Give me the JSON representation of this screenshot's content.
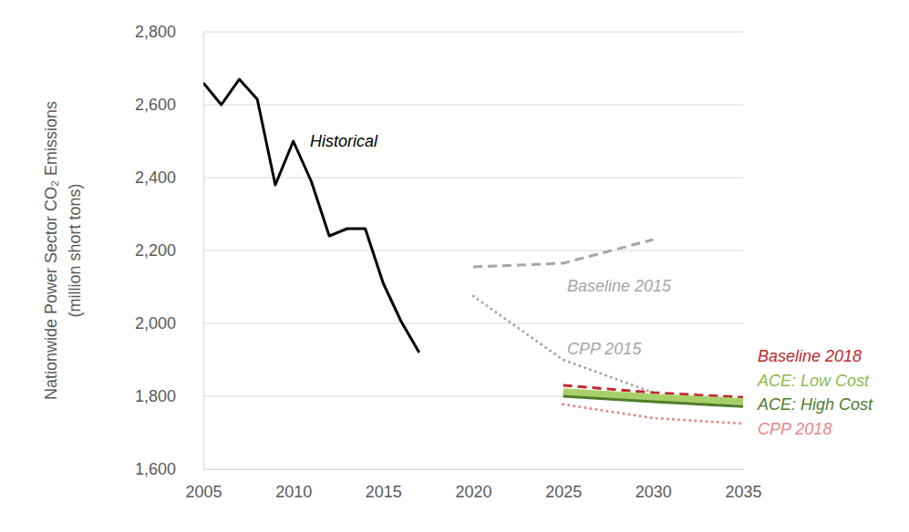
{
  "chart_data": {
    "type": "line",
    "y_label": [
      "Nationwide Power Sector CO₂ Emissions",
      "(million short tons)"
    ],
    "xlim": [
      2005,
      2035
    ],
    "xticks": [
      2005,
      2010,
      2015,
      2020,
      2025,
      2030,
      2035
    ],
    "ylim": [
      1600,
      2800
    ],
    "yticks": [
      {
        "value": 1600,
        "label": "1,600"
      },
      {
        "value": 1800,
        "label": "1,800"
      },
      {
        "value": 2000,
        "label": "2,000"
      },
      {
        "value": 2200,
        "label": "2,200"
      },
      {
        "value": 2400,
        "label": "2,400"
      },
      {
        "value": 2600,
        "label": "2,600"
      },
      {
        "value": 2800,
        "label": "2,800"
      }
    ],
    "grid": true,
    "series": [
      {
        "name": "Historical",
        "color": "#000000",
        "line_style": "solid",
        "x": [
          2005,
          2006,
          2007,
          2008,
          2009,
          2010,
          2011,
          2012,
          2013,
          2014,
          2015,
          2016,
          2017
        ],
        "values": [
          2660,
          2600,
          2670,
          2615,
          2380,
          2500,
          2390,
          2240,
          2260,
          2260,
          2110,
          2005,
          1920
        ]
      },
      {
        "name": "Baseline 2015",
        "color": "#a6a6a6",
        "line_style": "dashed",
        "x": [
          2020,
          2025,
          2030
        ],
        "values": [
          2155,
          2165,
          2230
        ]
      },
      {
        "name": "CPP 2015",
        "color": "#a6a6a6",
        "line_style": "dotted",
        "x": [
          2020,
          2025,
          2030
        ],
        "values": [
          2075,
          1900,
          1810
        ]
      },
      {
        "name": "Baseline 2018",
        "color": "#c0282d",
        "line_style": "dashed",
        "x": [
          2025,
          2030,
          2035
        ],
        "values": [
          1830,
          1810,
          1797
        ]
      },
      {
        "name": "ACE: Low Cost",
        "color": "#a9cf6b",
        "line_style": "solid",
        "x": [
          2025,
          2030,
          2035
        ],
        "values": [
          1812,
          1797,
          1785
        ]
      },
      {
        "name": "ACE: High Cost",
        "color": "#4f7d2a",
        "line_style": "solid",
        "x": [
          2025,
          2030,
          2035
        ],
        "values": [
          1800,
          1785,
          1772
        ]
      },
      {
        "name": "CPP 2018",
        "color": "#e8868a",
        "line_style": "dotted",
        "x": [
          2025,
          2030,
          2035
        ],
        "values": [
          1778,
          1740,
          1725
        ]
      }
    ]
  }
}
